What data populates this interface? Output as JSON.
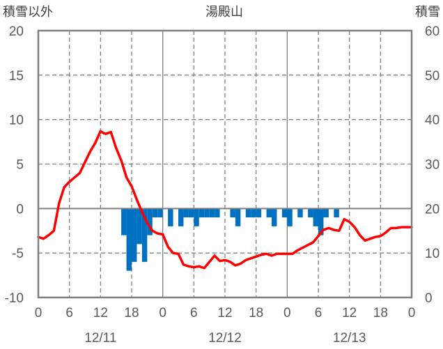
{
  "chart_data": {
    "type": "bar",
    "title": "湯殿山",
    "ylabel_left": "積雪以外",
    "ylabel_right": "積雪",
    "ylim_left": [
      -10,
      20
    ],
    "ylim_right": [
      0,
      60
    ],
    "yticks_left": [
      "20",
      "15",
      "10",
      "5",
      "0",
      "-5",
      "-10"
    ],
    "yticks_right": [
      "60",
      "50",
      "40",
      "30",
      "20",
      "10",
      "0"
    ],
    "xlim_hours": [
      0,
      72
    ],
    "xticks": [
      "0",
      "6",
      "12",
      "18",
      "0",
      "6",
      "12",
      "18",
      "0",
      "6",
      "12",
      "18",
      "0"
    ],
    "date_labels": [
      {
        "label": "12/11",
        "hour": 12
      },
      {
        "label": "12/12",
        "hour": 36
      },
      {
        "label": "12/13",
        "hour": 60
      }
    ],
    "grid": "vertical dashed every 6h, solid at day boundaries, horizontal every 5",
    "legend": "none",
    "series": [
      {
        "kind": "bar",
        "axis": "left",
        "color": "#0070c0",
        "x": [
          17,
          18,
          19,
          20,
          21,
          22,
          23,
          24,
          25,
          26,
          27,
          28,
          29,
          30,
          31,
          32,
          33,
          34,
          35,
          36,
          37,
          38,
          39,
          40,
          41,
          42,
          43,
          44,
          45,
          46,
          47,
          48,
          49,
          50,
          51,
          52,
          53,
          54,
          55,
          56,
          57,
          58
        ],
        "values": [
          -3,
          -7,
          -6,
          -4,
          -6,
          -3,
          -1,
          -1,
          0,
          -2,
          0,
          -2,
          -1,
          -1,
          -2,
          -1,
          -1,
          -1,
          -1,
          0,
          0,
          -1,
          -2,
          0,
          -1,
          -1,
          -1,
          0,
          -1,
          -2,
          0,
          -1,
          -2,
          0,
          -1,
          0,
          -1,
          -2,
          -3,
          -1,
          0,
          -1
        ]
      },
      {
        "kind": "line",
        "axis": "left",
        "color": "#ff0000",
        "x": [
          0,
          0.5,
          1,
          2,
          3,
          4,
          5,
          6,
          7,
          8,
          9,
          10,
          11,
          12,
          12.5,
          13,
          14,
          15,
          16,
          17,
          18,
          19,
          20,
          21,
          22,
          23,
          24,
          25,
          26,
          27,
          28,
          29,
          30,
          31,
          32,
          33,
          34,
          35,
          36,
          37,
          38,
          39,
          40,
          41,
          42,
          43,
          44,
          45,
          46,
          47,
          48,
          49,
          50,
          51,
          52,
          53,
          54,
          55,
          56,
          57,
          58,
          59,
          60,
          61,
          62,
          63,
          64,
          65,
          66,
          67,
          68,
          69,
          70,
          71,
          72
        ],
        "values": [
          -3.2,
          -3.3,
          -3.4,
          -3,
          -2.5,
          0.6,
          2.4,
          3,
          3.5,
          4,
          5.2,
          6.4,
          7.4,
          8.7,
          8.5,
          8.4,
          8.6,
          6.8,
          5.4,
          3.5,
          2.5,
          1,
          -0.4,
          -1.6,
          -2.5,
          -2.8,
          -2.9,
          -4.3,
          -5,
          -5.1,
          -6.3,
          -6.5,
          -6.6,
          -6.5,
          -6.7,
          -6,
          -5.3,
          -5.9,
          -5.8,
          -6,
          -6.4,
          -6.2,
          -5.8,
          -5.6,
          -5.4,
          -5.2,
          -5.1,
          -5.3,
          -5.1,
          -5.1,
          -5.1,
          -5.1,
          -4.7,
          -4.4,
          -4.1,
          -3.8,
          -3.1,
          -2.4,
          -2.2,
          -2.4,
          -2.5,
          -1.2,
          -1.5,
          -2.1,
          -3,
          -3.6,
          -3.4,
          -3.2,
          -3.1,
          -2.7,
          -2.2,
          -2.2,
          -2.1,
          -2.1,
          -2.1
        ]
      }
    ]
  }
}
